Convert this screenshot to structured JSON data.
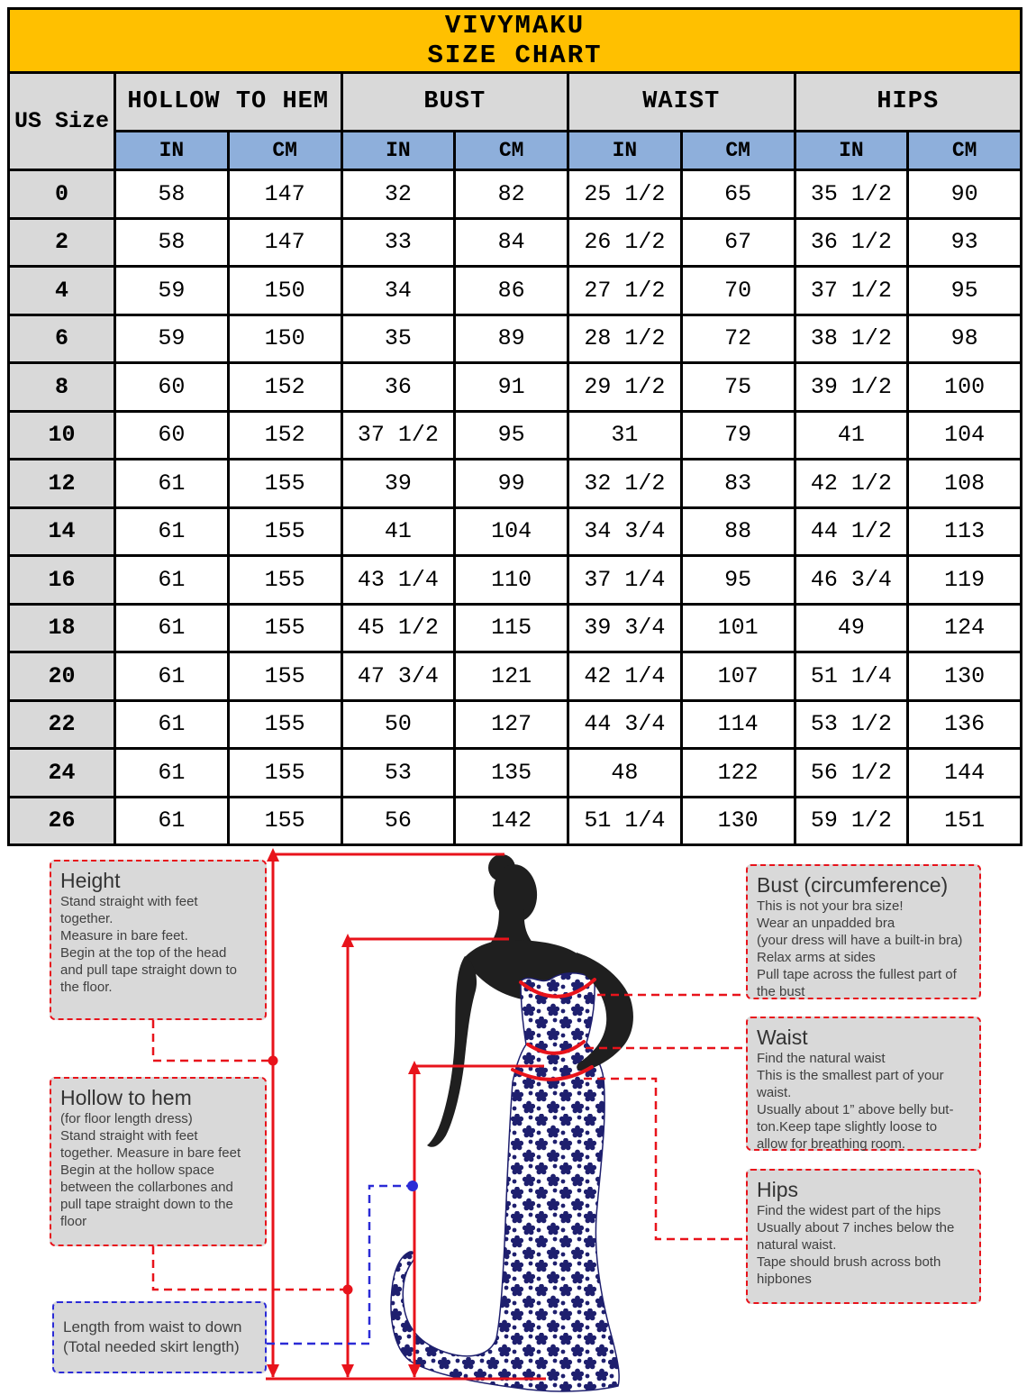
{
  "header": {
    "brand": "VIVYMAKU",
    "title": "SIZE CHART"
  },
  "table": {
    "corner_label": "US Size",
    "groups": [
      {
        "label": "HOLLOW TO HEM"
      },
      {
        "label": "BUST"
      },
      {
        "label": "WAIST"
      },
      {
        "label": "HIPS"
      }
    ],
    "unit_headers": [
      "IN",
      "CM",
      "IN",
      "CM",
      "IN",
      "CM",
      "IN",
      "CM"
    ],
    "rows": [
      {
        "size": "0",
        "cells": [
          "58",
          "147",
          "32",
          "82",
          "25 1/2",
          "65",
          "35 1/2",
          "90"
        ]
      },
      {
        "size": "2",
        "cells": [
          "58",
          "147",
          "33",
          "84",
          "26 1/2",
          "67",
          "36 1/2",
          "93"
        ]
      },
      {
        "size": "4",
        "cells": [
          "59",
          "150",
          "34",
          "86",
          "27 1/2",
          "70",
          "37 1/2",
          "95"
        ]
      },
      {
        "size": "6",
        "cells": [
          "59",
          "150",
          "35",
          "89",
          "28 1/2",
          "72",
          "38 1/2",
          "98"
        ]
      },
      {
        "size": "8",
        "cells": [
          "60",
          "152",
          "36",
          "91",
          "29 1/2",
          "75",
          "39 1/2",
          "100"
        ]
      },
      {
        "size": "10",
        "cells": [
          "60",
          "152",
          "37 1/2",
          "95",
          "31",
          "79",
          "41",
          "104"
        ]
      },
      {
        "size": "12",
        "cells": [
          "61",
          "155",
          "39",
          "99",
          "32 1/2",
          "83",
          "42 1/2",
          "108"
        ]
      },
      {
        "size": "14",
        "cells": [
          "61",
          "155",
          "41",
          "104",
          "34 3/4",
          "88",
          "44 1/2",
          "113"
        ]
      },
      {
        "size": "16",
        "cells": [
          "61",
          "155",
          "43 1/4",
          "110",
          "37 1/4",
          "95",
          "46 3/4",
          "119"
        ]
      },
      {
        "size": "18",
        "cells": [
          "61",
          "155",
          "45 1/2",
          "115",
          "39 3/4",
          "101",
          "49",
          "124"
        ]
      },
      {
        "size": "20",
        "cells": [
          "61",
          "155",
          "47 3/4",
          "121",
          "42 1/4",
          "107",
          "51 1/4",
          "130"
        ]
      },
      {
        "size": "22",
        "cells": [
          "61",
          "155",
          "50",
          "127",
          "44 3/4",
          "114",
          "53 1/2",
          "136"
        ]
      },
      {
        "size": "24",
        "cells": [
          "61",
          "155",
          "53",
          "135",
          "48",
          "122",
          "56 1/2",
          "144"
        ]
      },
      {
        "size": "26",
        "cells": [
          "61",
          "155",
          "56",
          "142",
          "51 1/4",
          "130",
          "59 1/2",
          "151"
        ]
      }
    ]
  },
  "guide": {
    "height_box": {
      "title": "Height",
      "body": "Stand straight with feet\ntogether.\nMeasure in bare feet.\nBegin at the top of the head\nand pull tape straight down to\nthe floor."
    },
    "hollow_box": {
      "title": "Hollow to hem",
      "body": "(for floor length dress)\nStand straight with feet\ntogether. Measure in bare feet\nBegin at the hollow space\nbetween the collarbones and\npull tape straight down to the\nfloor"
    },
    "length_box": {
      "body": "Length from waist to down\n(Total needed skirt length)"
    },
    "bust_box": {
      "title": "Bust (circumference)",
      "body": "This is not your bra size!\nWear an unpadded bra\n(your dress will have a built-in bra)\nRelax arms at sides\nPull tape across the fullest part of\nthe bust"
    },
    "waist_box": {
      "title": "Waist",
      "body": "Find the natural waist\nThis is the smallest part of your\nwaist.\nUsually about 1” above belly but-\nton.Keep tape slightly loose to\nallow for breathing room."
    },
    "hips_box": {
      "title": "Hips",
      "body": "Find the widest part of the hips\nUsually about 7 inches below the\nnatural waist.\nTape should brush across both\nhipbones"
    }
  },
  "colors": {
    "banner_yellow": "#FFC000",
    "header_gray": "#D9D9D9",
    "unit_blue": "#8EAFDB",
    "measure_red": "#E8131B",
    "guide_blue": "#2B2BD6",
    "dress_navy": "#1E1F6E",
    "silhouette_black": "#1F1F1F"
  }
}
